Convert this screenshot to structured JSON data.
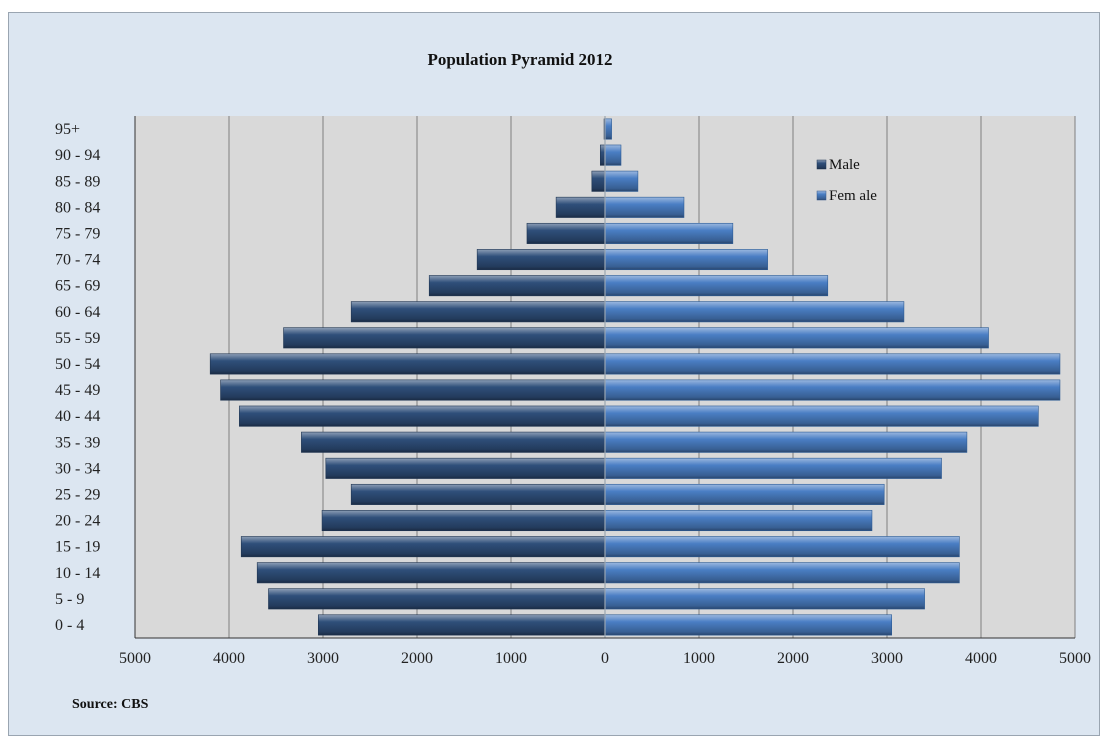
{
  "chart_data": {
    "type": "bar",
    "orientation": "horizontal",
    "title": "Population Pyramid 2012",
    "source": "Source: CBS",
    "categories": [
      "0 - 4",
      "5 - 9",
      "10 - 14",
      "15 - 19",
      "20 - 24",
      "25 - 29",
      "30 - 34",
      "35 - 39",
      "40 - 44",
      "45 - 49",
      "50 - 54",
      "55 - 59",
      "60 - 64",
      "65 - 69",
      "70 - 74",
      "75 - 79",
      "80 - 84",
      "85 - 89",
      "90 - 94",
      "95+"
    ],
    "series": [
      {
        "name": "Male",
        "color": "#2f4f7a",
        "values": [
          3050,
          3580,
          3700,
          3870,
          3010,
          2700,
          2970,
          3230,
          3890,
          4090,
          4200,
          3420,
          2700,
          1870,
          1360,
          830,
          520,
          140,
          50,
          10
        ]
      },
      {
        "name": "Fem ale",
        "color": "#4a7ec4",
        "values": [
          3050,
          3400,
          3770,
          3770,
          2840,
          2970,
          3580,
          3850,
          4610,
          4840,
          4840,
          4080,
          3180,
          2370,
          1730,
          1360,
          840,
          350,
          170,
          70
        ]
      }
    ],
    "x_ticks": [
      "5000",
      "4000",
      "3000",
      "2000",
      "1000",
      "0",
      "1000",
      "2000",
      "3000",
      "4000",
      "5000"
    ],
    "xlim": [
      -5000,
      5000
    ],
    "grid": "vertical",
    "legend_position": "top-right"
  }
}
